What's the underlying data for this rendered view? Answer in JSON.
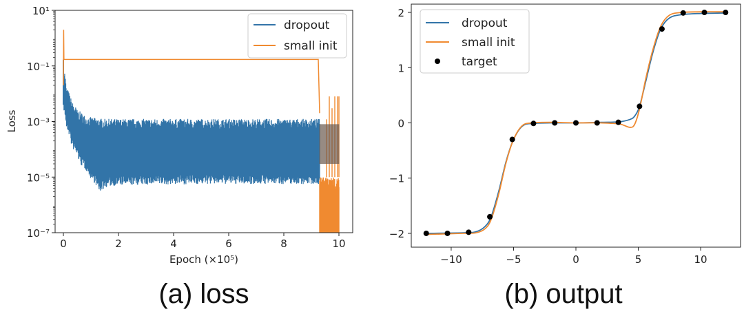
{
  "colors": {
    "dropout": "#3274a8",
    "small_init": "#f08a30",
    "target": "#000000"
  },
  "chart_data": [
    {
      "type": "line",
      "caption": "(a) loss",
      "xlabel": "Epoch (×10⁵)",
      "ylabel": "Loss",
      "yscale": "log",
      "xlim": [
        -0.3,
        10.5
      ],
      "ylim": [
        1e-07,
        10
      ],
      "x_ticks": [
        0,
        2,
        4,
        6,
        8,
        10
      ],
      "y_ticks": [
        {
          "value": 10.0,
          "label": "10¹"
        },
        {
          "value": 0.1,
          "label": "10⁻¹"
        },
        {
          "value": 0.001,
          "label": "10⁻³"
        },
        {
          "value": 1e-05,
          "label": "10⁻⁵"
        },
        {
          "value": 1e-07,
          "label": "10⁻⁷"
        }
      ],
      "legend": {
        "position": "top-right",
        "entries": [
          "dropout",
          "small init"
        ]
      },
      "series": [
        {
          "name": "dropout",
          "style": "noisy-band",
          "upper": {
            "x": [
              0,
              0.02,
              0.1,
              0.3,
              0.5,
              0.8,
              1.0,
              1.5,
              3,
              6,
              9,
              9.3,
              10
            ],
            "y": [
              0.17,
              0.05,
              0.01,
              0.003,
              0.0015,
              0.0009,
              0.0008,
              0.0007,
              0.0007,
              0.0007,
              0.0007,
              0.0007,
              0.0007
            ]
          },
          "lower": {
            "x": [
              0,
              0.1,
              0.3,
              0.6,
              1.0,
              1.3,
              1.6,
              2,
              5,
              9,
              9.3,
              10
            ],
            "y": [
              0.005,
              0.001,
              0.0002,
              5e-05,
              1.5e-05,
              5e-06,
              8e-06,
              9e-06,
              1e-05,
              1e-05,
              1e-05,
              1e-05
            ]
          }
        },
        {
          "name": "small init",
          "style": "line",
          "x": [
            0,
            0.01,
            0.02,
            0.05,
            9.2,
            9.25,
            9.3
          ],
          "y": [
            0.02,
            2,
            0.17,
            0.17,
            0.17,
            0.17,
            0.002
          ],
          "spikes": {
            "x": [
              9.55,
              9.65,
              9.75,
              9.85,
              9.95,
              10.0
            ],
            "y": [
              0.0012,
              0.008,
              0.003,
              0.008,
              0.008,
              0.008
            ]
          },
          "tail_band": {
            "x_range": [
              9.3,
              10.0
            ],
            "y_low": 1e-07,
            "y_high": 1e-05
          }
        }
      ]
    },
    {
      "type": "line",
      "caption": "(b) output",
      "xlim": [
        -13.2,
        13.2
      ],
      "ylim": [
        -2.25,
        2.15
      ],
      "x_ticks": [
        {
          "value": -10,
          "label": "−10"
        },
        {
          "value": -5,
          "label": "−5"
        },
        {
          "value": 0,
          "label": "0"
        },
        {
          "value": 5,
          "label": "5"
        },
        {
          "value": 10,
          "label": "10"
        }
      ],
      "y_ticks": [
        {
          "value": -2,
          "label": "−2"
        },
        {
          "value": -1,
          "label": "−1"
        },
        {
          "value": 0,
          "label": "0"
        },
        {
          "value": 1,
          "label": "1"
        },
        {
          "value": 2,
          "label": "2"
        }
      ],
      "legend": {
        "position": "top-left",
        "entries": [
          "dropout",
          "small init",
          "target"
        ]
      },
      "series": [
        {
          "name": "dropout",
          "x": [
            -12,
            -9,
            -8,
            -7.3,
            -6.8,
            -6.2,
            -5.6,
            -5,
            -4.3,
            -3.5,
            -2,
            0,
            2,
            3.5,
            4.3,
            4.7,
            5.1,
            5.6,
            6.2,
            6.8,
            7.5,
            8.5,
            10,
            12
          ],
          "y": [
            -2.0,
            -1.99,
            -1.97,
            -1.88,
            -1.7,
            -1.25,
            -0.7,
            -0.3,
            -0.06,
            -0.01,
            0.0,
            0.0,
            0.01,
            0.02,
            0.06,
            0.12,
            0.3,
            0.75,
            1.3,
            1.7,
            1.9,
            1.96,
            1.98,
            1.99
          ]
        },
        {
          "name": "small init",
          "x": [
            -12,
            -9,
            -8,
            -7.3,
            -6.8,
            -6.2,
            -5.6,
            -5,
            -4.3,
            -3.5,
            -2,
            0,
            2,
            3.5,
            4.3,
            4.7,
            5.1,
            5.6,
            6.2,
            6.8,
            7.5,
            8.5,
            10,
            12
          ],
          "y": [
            -2.02,
            -2.0,
            -1.99,
            -1.92,
            -1.75,
            -1.3,
            -0.72,
            -0.3,
            -0.05,
            0.0,
            0.01,
            0.0,
            0.0,
            -0.02,
            -0.08,
            -0.03,
            0.25,
            0.8,
            1.35,
            1.75,
            1.95,
            2.0,
            2.01,
            2.01
          ]
        },
        {
          "name": "target",
          "style": "points",
          "x": [
            -12,
            -10.3,
            -8.6,
            -6.9,
            -5.1,
            -3.4,
            -1.7,
            0,
            1.7,
            3.4,
            5.1,
            6.9,
            8.6,
            10.3,
            12
          ],
          "y": [
            -2.0,
            -2.0,
            -1.98,
            -1.7,
            -0.3,
            -0.01,
            0.0,
            0.0,
            0.0,
            0.01,
            0.3,
            1.7,
            1.99,
            2.0,
            2.0
          ]
        }
      ]
    }
  ]
}
